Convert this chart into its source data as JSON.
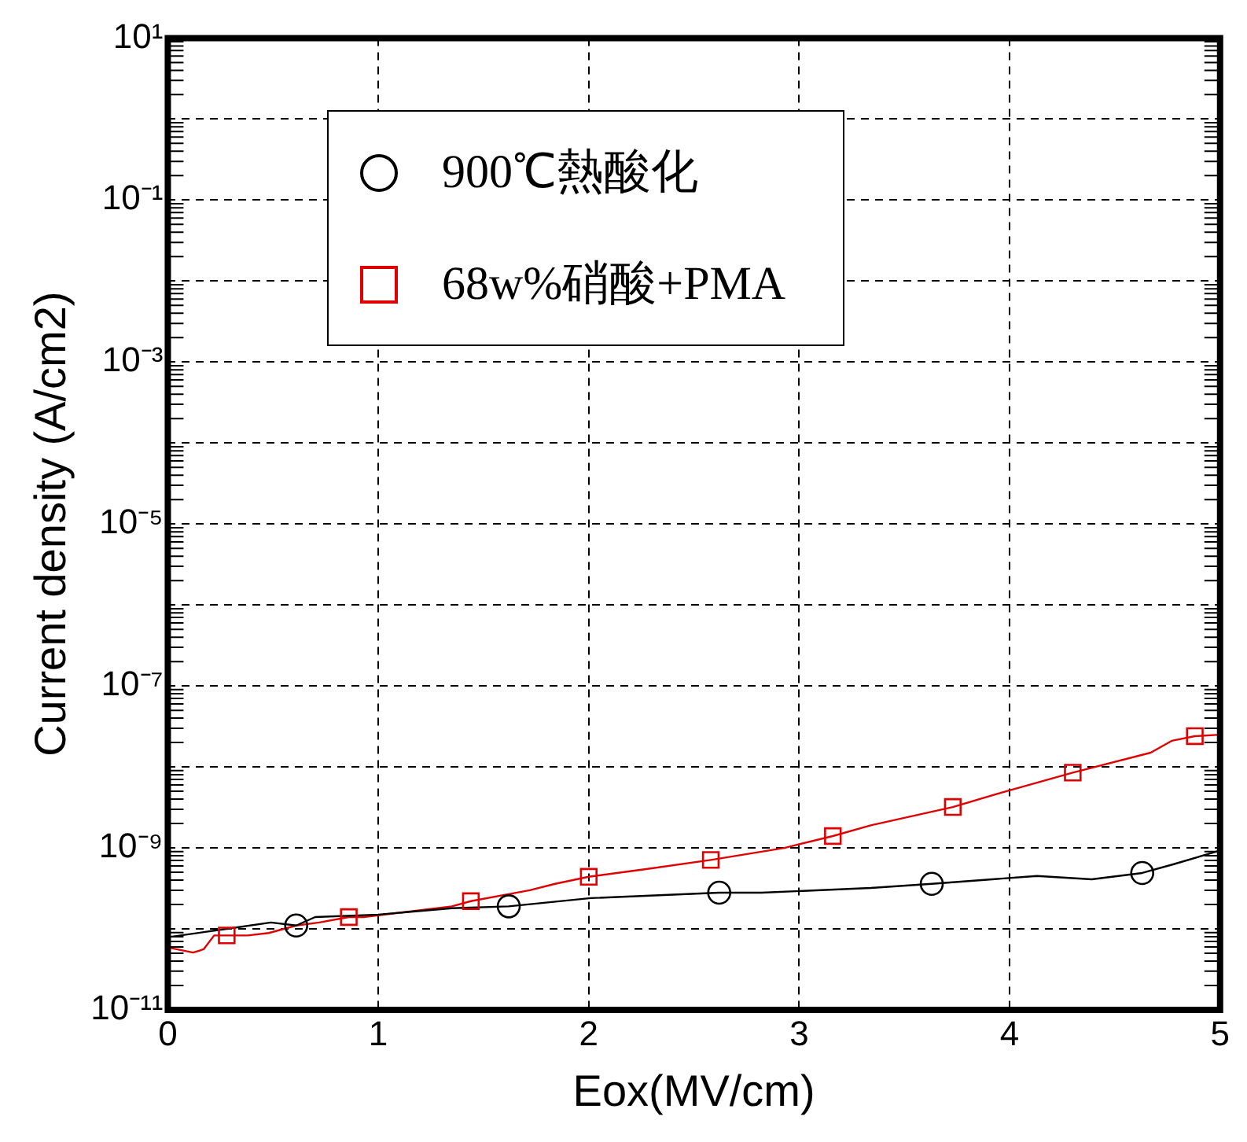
{
  "chart_data": {
    "type": "line",
    "xlabel": "Eox(MV/cm)",
    "ylabel": "Current density (A/cm2)",
    "log": "y",
    "xlim": [
      0,
      5
    ],
    "xticks": [
      0,
      1,
      2,
      3,
      4,
      5
    ],
    "ylim": [
      1e-11,
      10.0
    ],
    "yticks": [
      {
        "value": 1e-11,
        "label": "10⁻¹¹"
      },
      {
        "value": 1e-10,
        "label": null
      },
      {
        "value": 1e-09,
        "label": "10⁻⁹"
      },
      {
        "value": 1e-08,
        "label": null
      },
      {
        "value": 1e-07,
        "label": "10⁻⁷"
      },
      {
        "value": 1e-06,
        "label": null
      },
      {
        "value": 1e-05,
        "label": "10⁻⁵"
      },
      {
        "value": 0.0001,
        "label": null
      },
      {
        "value": 0.001,
        "label": "10⁻³"
      },
      {
        "value": 0.01,
        "label": null
      },
      {
        "value": 0.1,
        "label": "10⁻¹"
      },
      {
        "value": 1,
        "label": null
      },
      {
        "value": 10,
        "label": "10¹"
      }
    ],
    "grid": true,
    "legend": "top left",
    "series": [
      {
        "type": "line",
        "marker": "none",
        "color": "#000000",
        "x": [
          0,
          0.28,
          0.49,
          0.61,
          0.7,
          1.0,
          1.35,
          1.62,
          2.01,
          2.62,
          2.82,
          3.34,
          3.63,
          4.13,
          4.39,
          4.63,
          4.78,
          5.0
        ],
        "values": [
          7.9e-11,
          1e-10,
          1.2e-10,
          1.1e-10,
          1.4e-10,
          1.5e-10,
          1.8e-10,
          1.9e-10,
          2.4e-10,
          2.8e-10,
          2.8e-10,
          3.2e-10,
          3.6e-10,
          4.5e-10,
          4.1e-10,
          4.9e-10,
          6.3e-10,
          9.3e-10
        ]
      },
      {
        "type": "line",
        "marker": "none",
        "color": "#e00000",
        "x": [
          0,
          0.12,
          0.17,
          0.22,
          0.28,
          0.38,
          0.48,
          0.61,
          0.72,
          0.86,
          0.93,
          1.35,
          1.44,
          1.72,
          1.84,
          2.0,
          2.28,
          2.58,
          2.93,
          3.16,
          3.34,
          3.73,
          3.96,
          4.3,
          4.67,
          4.77,
          4.88,
          5.0
        ],
        "values": [
          5.9e-11,
          5.1e-11,
          5.6e-11,
          8.3e-11,
          8.3e-11,
          8.3e-11,
          8.9e-11,
          1.1e-10,
          1.2e-10,
          1.4e-10,
          1.4e-10,
          1.9e-10,
          2.2e-10,
          3e-10,
          3.6e-10,
          4.4e-10,
          5.5e-10,
          7.1e-10,
          1e-09,
          1.4e-09,
          1.9e-09,
          3.2e-09,
          4.8e-09,
          8.5e-09,
          1.5e-08,
          2.1e-08,
          2.4e-08,
          2.5e-08
        ]
      },
      {
        "type": "scatter",
        "name": "900℃熱酸化",
        "marker": "circle",
        "color": "#000000",
        "x": [
          0.61,
          1.62,
          2.62,
          3.63,
          4.63
        ],
        "values": [
          1.1e-10,
          1.9e-10,
          2.8e-10,
          3.6e-10,
          4.9e-10
        ]
      },
      {
        "type": "scatter",
        "name": "68w%硝酸+PMA",
        "marker": "square",
        "color": "#e00000",
        "x": [
          0.28,
          0.86,
          1.44,
          2.0,
          2.58,
          3.16,
          3.73,
          4.3,
          4.88
        ],
        "values": [
          8.3e-11,
          1.4e-10,
          2.2e-10,
          4.4e-10,
          7.1e-10,
          1.4e-09,
          3.2e-09,
          8.5e-09,
          2.4e-08
        ]
      }
    ]
  }
}
